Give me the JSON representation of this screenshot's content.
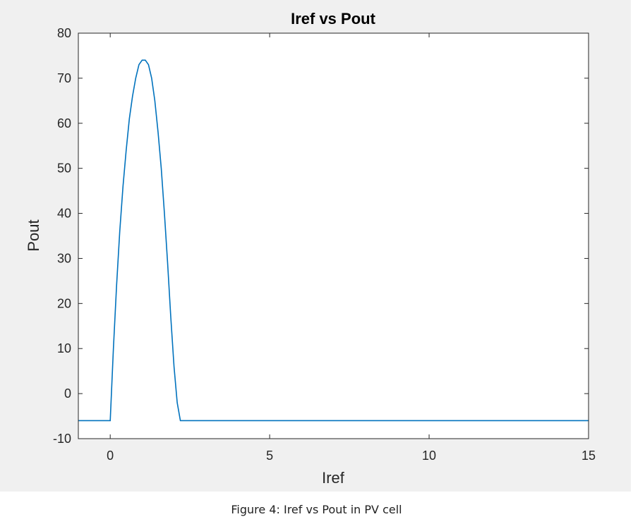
{
  "chart_data": {
    "type": "line",
    "title": "Iref vs Pout",
    "xlabel": "Iref",
    "ylabel": "Pout",
    "xlim": [
      -1,
      15
    ],
    "ylim": [
      -10,
      80
    ],
    "xticks": [
      0,
      5,
      10,
      15
    ],
    "yticks": [
      -10,
      0,
      10,
      20,
      30,
      40,
      50,
      60,
      70,
      80
    ],
    "grid": false,
    "series": [
      {
        "color": "#0072bd",
        "x": [
          -1,
          0,
          0.1,
          0.2,
          0.3,
          0.4,
          0.5,
          0.6,
          0.7,
          0.8,
          0.9,
          1.0,
          1.1,
          1.2,
          1.3,
          1.4,
          1.5,
          1.6,
          1.7,
          1.8,
          1.9,
          2.0,
          2.1,
          2.2,
          15
        ],
        "y": [
          -6,
          -6,
          10,
          24,
          36,
          46,
          54,
          61,
          66,
          70,
          73,
          74,
          74,
          73,
          70,
          65,
          58,
          50,
          40,
          29,
          17,
          6,
          -2,
          -6,
          -6
        ]
      }
    ]
  },
  "caption": "Figure 4: Iref vs Pout in PV cell"
}
